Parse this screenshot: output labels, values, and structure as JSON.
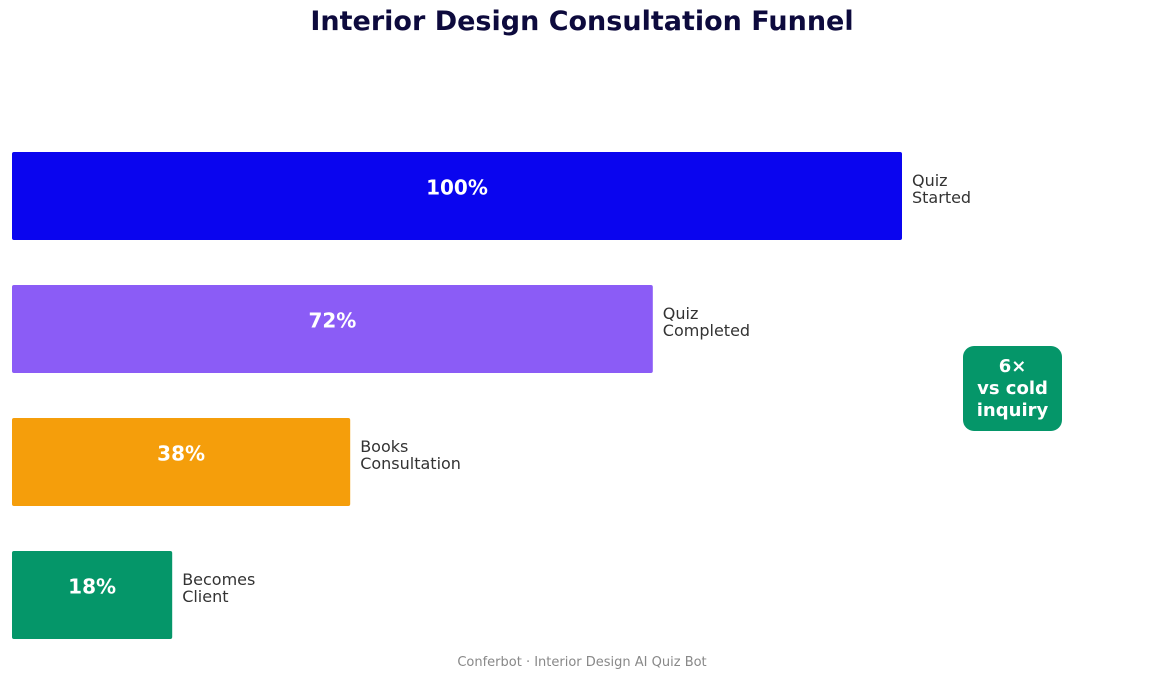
{
  "chart_data": {
    "type": "bar",
    "orientation": "horizontal",
    "title": "Interior Design Consultation Funnel",
    "categories": [
      "Quiz Started",
      "Quiz Completed",
      "Books Consultation",
      "Becomes Client"
    ],
    "category_lines": [
      [
        "Quiz",
        "Started"
      ],
      [
        "Quiz",
        "Completed"
      ],
      [
        "Books",
        "Consultation"
      ],
      [
        "Becomes",
        "Client"
      ]
    ],
    "values": [
      100,
      72,
      38,
      18
    ],
    "value_labels": [
      "100%",
      "72%",
      "38%",
      "18%"
    ],
    "colors": [
      "#0a05ef",
      "#8b5cf6",
      "#f59e0b",
      "#059669"
    ],
    "xlim": [
      0,
      100
    ],
    "grid": false,
    "axes_visible": false,
    "annotation": {
      "lines": [
        "6×",
        "vs cold",
        "inquiry"
      ],
      "background": "#059669"
    },
    "footer": "Conferbot · Interior Design AI Quiz Bot"
  }
}
